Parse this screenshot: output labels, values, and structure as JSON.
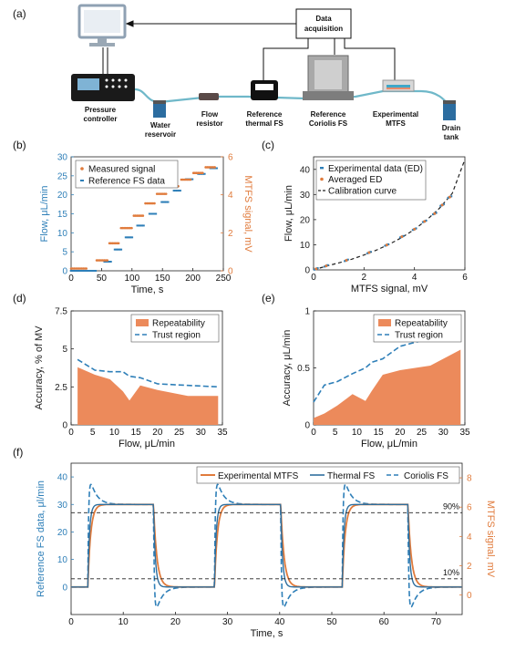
{
  "colors": {
    "blue": "#2e7fb8",
    "orange": "#e07b3c",
    "fill": "#ec8a5b",
    "dark": "#111111"
  },
  "panels": {
    "a": "(a)",
    "b": "(b)",
    "c": "(c)",
    "d": "(d)",
    "e": "(e)",
    "f": "(f)"
  },
  "setup": {
    "data_acquisition": [
      "Data",
      "acquisition"
    ],
    "pressure_controller": [
      "Pressure",
      "controller"
    ],
    "water_reservoir": [
      "Water",
      "reservoir"
    ],
    "flow_resistor": [
      "Flow",
      "resistor"
    ],
    "thermal_fs": [
      "Reference",
      "thermal FS"
    ],
    "coriolis_fs": [
      "Reference",
      "Coriolis FS"
    ],
    "mtfs": [
      "Experimental",
      "MTFS"
    ],
    "drain_tank": [
      "Drain",
      "tank"
    ]
  },
  "chart_data": [
    {
      "id": "b",
      "type": "scatter",
      "xlabel": "Time, s",
      "ylabel": "Flow, μL/min",
      "y2label": "MTFS signal, mV",
      "xlim": [
        0,
        250
      ],
      "ylim": [
        0,
        30
      ],
      "y2lim": [
        0,
        6
      ],
      "xticks": [
        0,
        50,
        100,
        150,
        200,
        250
      ],
      "yticks": [
        0,
        5,
        10,
        15,
        20,
        25,
        30
      ],
      "y2ticks": [
        0,
        2,
        4,
        6
      ],
      "legend_position": "top-left",
      "series": [
        {
          "name": "Measured signal",
          "axis": "right",
          "steps": [
            [
              0,
              25,
              0.12
            ],
            [
              42,
              60,
              0.55
            ],
            [
              63,
              78,
              1.45
            ],
            [
              82,
              100,
              2.25
            ],
            [
              103,
              118,
              2.9
            ],
            [
              122,
              138,
              3.55
            ],
            [
              141,
              158,
              4.05
            ],
            [
              161,
              178,
              4.45
            ],
            [
              181,
              198,
              4.8
            ],
            [
              201,
              218,
              5.15
            ],
            [
              221,
              238,
              5.45
            ]
          ]
        },
        {
          "name": "Reference FS data",
          "axis": "left",
          "steps": [
            [
              0,
              40,
              0
            ],
            [
              55,
              65,
              2.4
            ],
            [
              72,
              82,
              5.6
            ],
            [
              90,
              101,
              8.8
            ],
            [
              109,
              120,
              11.9
            ],
            [
              129,
              140,
              15.0
            ],
            [
              149,
              160,
              18.1
            ],
            [
              169,
              180,
              21.1
            ],
            [
              189,
              200,
              24.1
            ],
            [
              209,
              220,
              25.5
            ],
            [
              229,
              240,
              27.0
            ]
          ]
        }
      ]
    },
    {
      "id": "c",
      "type": "scatter",
      "xlabel": "MTFS signal, mV",
      "ylabel": "Flow, μL/min",
      "xlim": [
        0,
        6
      ],
      "ylim": [
        0,
        45
      ],
      "xticks": [
        0,
        2,
        4,
        6
      ],
      "yticks": [
        0,
        10,
        20,
        30,
        40
      ],
      "legend_position": "top-left",
      "series": [
        {
          "name": "Experimental data (ED)",
          "points": [
            [
              0.1,
              0.4
            ],
            [
              0.5,
              1.6
            ],
            [
              1.3,
              3.8
            ],
            [
              2.2,
              6.9
            ],
            [
              2.9,
              9.9
            ],
            [
              3.5,
              13.2
            ],
            [
              4.0,
              16.2
            ],
            [
              4.4,
              19.3
            ],
            [
              4.8,
              22.4
            ],
            [
              5.1,
              25.8
            ],
            [
              5.4,
              29.0
            ]
          ]
        },
        {
          "name": "Averaged ED",
          "points": [
            [
              0.1,
              0.4
            ],
            [
              0.5,
              1.6
            ],
            [
              1.3,
              3.8
            ],
            [
              2.2,
              6.9
            ],
            [
              2.9,
              9.9
            ],
            [
              3.5,
              13.2
            ],
            [
              4.0,
              16.2
            ],
            [
              4.4,
              19.3
            ],
            [
              4.8,
              22.4
            ],
            [
              5.1,
              25.8
            ],
            [
              5.4,
              29.0
            ]
          ]
        },
        {
          "name": "Calibration curve",
          "points": [
            [
              0,
              0
            ],
            [
              0.5,
              1.5
            ],
            [
              1.0,
              2.8
            ],
            [
              1.5,
              4.2
            ],
            [
              2.0,
              5.9
            ],
            [
              2.5,
              7.9
            ],
            [
              3.0,
              10.2
            ],
            [
              3.5,
              12.9
            ],
            [
              4.0,
              16.1
            ],
            [
              4.5,
              20.0
            ],
            [
              5.0,
              24.6
            ],
            [
              5.5,
              30.5
            ],
            [
              6.0,
              44.0
            ]
          ]
        }
      ]
    },
    {
      "id": "d",
      "type": "area",
      "xlabel": "Flow, μL/min",
      "ylabel": "Accuracy, % of MV",
      "xlim": [
        0,
        35
      ],
      "ylim": [
        0,
        7.5
      ],
      "xticks": [
        0,
        5,
        10,
        15,
        20,
        25,
        30,
        35
      ],
      "yticks": [
        0,
        2.5,
        5,
        7.5
      ],
      "legend_position": "top-right",
      "series": [
        {
          "name": "Repeatability",
          "points": [
            [
              1.5,
              3.8
            ],
            [
              5.5,
              3.3
            ],
            [
              9,
              3.0
            ],
            [
              12,
              2.2
            ],
            [
              13.5,
              1.6
            ],
            [
              16,
              2.6
            ],
            [
              20,
              2.3
            ],
            [
              27,
              1.9
            ],
            [
              34,
              1.9
            ]
          ]
        },
        {
          "name": "Trust region",
          "points": [
            [
              1.5,
              4.3
            ],
            [
              5.5,
              3.6
            ],
            [
              9,
              3.5
            ],
            [
              12,
              3.5
            ],
            [
              13.5,
              3.2
            ],
            [
              16,
              3.1
            ],
            [
              20,
              2.7
            ],
            [
              27,
              2.6
            ],
            [
              34,
              2.5
            ]
          ]
        }
      ]
    },
    {
      "id": "e",
      "type": "area",
      "xlabel": "Flow, μL/min",
      "ylabel": "Accuracy, μL/min",
      "xlim": [
        0,
        35
      ],
      "ylim": [
        0,
        1
      ],
      "xticks": [
        0,
        5,
        10,
        15,
        20,
        25,
        30,
        35
      ],
      "yticks": [
        0,
        0.5,
        1
      ],
      "legend_position": "top-right",
      "series": [
        {
          "name": "Repeatability",
          "points": [
            [
              0,
              0.06
            ],
            [
              2.5,
              0.1
            ],
            [
              5.5,
              0.17
            ],
            [
              9,
              0.27
            ],
            [
              12,
              0.21
            ],
            [
              13.5,
              0.3
            ],
            [
              16,
              0.44
            ],
            [
              20,
              0.48
            ],
            [
              27,
              0.52
            ],
            [
              34,
              0.66
            ]
          ]
        },
        {
          "name": "Trust region",
          "points": [
            [
              0,
              0.2
            ],
            [
              2.5,
              0.35
            ],
            [
              5.5,
              0.38
            ],
            [
              9,
              0.45
            ],
            [
              12,
              0.5
            ],
            [
              13.5,
              0.55
            ],
            [
              16,
              0.58
            ],
            [
              20,
              0.69
            ],
            [
              27,
              0.76
            ],
            [
              34,
              0.83
            ]
          ]
        }
      ]
    },
    {
      "id": "f",
      "type": "line",
      "xlabel": "Time, s",
      "ylabel": "Reference FS data, μl/min",
      "y2label": "MTFS signal, mV",
      "xlim": [
        0,
        75
      ],
      "ylim": [
        -10,
        45
      ],
      "y2lim": [
        -1.33,
        9
      ],
      "xticks": [
        0,
        10,
        20,
        30,
        40,
        50,
        60,
        70
      ],
      "yticks": [
        0,
        10,
        20,
        30,
        40
      ],
      "y2ticks": [
        0,
        2,
        4,
        6,
        8
      ],
      "legend_position": "top",
      "thresholds": [
        {
          "label": "90%",
          "y": 27
        },
        {
          "label": "10%",
          "y": 3
        }
      ],
      "pulses": [
        [
          3.2,
          15.8
        ],
        [
          27.5,
          40.2
        ],
        [
          52,
          64.6
        ]
      ],
      "high": 30,
      "low": 0,
      "series": [
        {
          "name": "Experimental MTFS"
        },
        {
          "name": "Thermal FS"
        },
        {
          "name": "Coriolis FS"
        }
      ]
    }
  ]
}
